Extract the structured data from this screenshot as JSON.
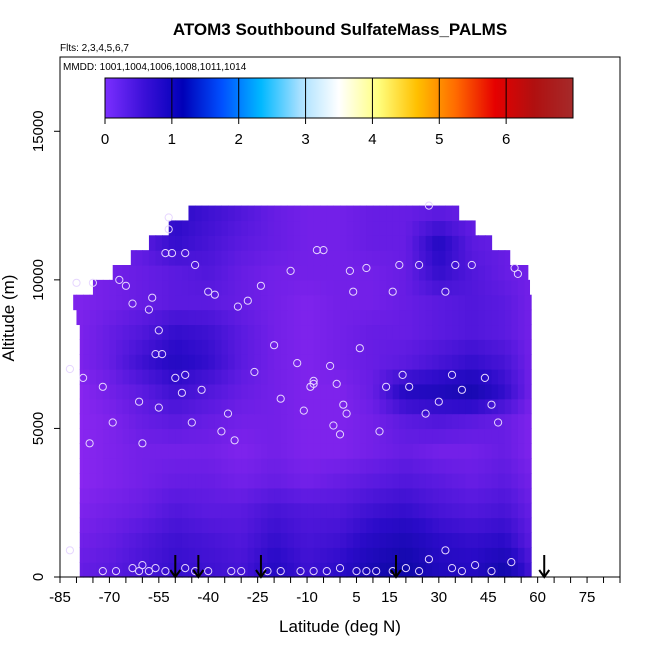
{
  "chart_data": {
    "type": "heatmap",
    "title": "ATOM3 Southbound SulfateMass_PALMS",
    "subtitle_flights": "Flts: 2,3,4,5,6,7",
    "subtitle_dates": "MMDD: 1001,1004,1006,1008,1011,1014",
    "xlabel": "Latitude (deg N)",
    "ylabel": "Altitude (m)",
    "xlim": [
      -85,
      85
    ],
    "ylim": [
      0,
      17500
    ],
    "x_ticks": [
      -85,
      -70,
      -55,
      -40,
      -25,
      -10,
      5,
      15,
      30,
      45,
      60,
      75
    ],
    "y_ticks": [
      0,
      5000,
      10000,
      15000
    ],
    "colorbar": {
      "range": [
        0,
        7
      ],
      "ticks": [
        0,
        1,
        2,
        3,
        4,
        5,
        6
      ],
      "colors": [
        "#7b2fff",
        "#3b10d8",
        "#0000b8",
        "#0050ff",
        "#00b8ff",
        "#a8e0ff",
        "#ffffff",
        "#ffff80",
        "#ffc000",
        "#ff6a00",
        "#e60000",
        "#b01010",
        "#a52a2a"
      ]
    },
    "field_colors": {
      "low": "#8a26f0",
      "mid": "#5b1ae0",
      "high": "#2a0bc8",
      "max": "#0f08a8"
    },
    "field": {
      "lat_grid": [
        -80,
        -70,
        -60,
        -50,
        -40,
        -30,
        -20,
        -10,
        0,
        10,
        20,
        30,
        40,
        50,
        58
      ],
      "alt_grid": [
        0,
        1000,
        2000,
        3000,
        4000,
        5000,
        6000,
        7000,
        8000,
        9000,
        10000,
        11000,
        12000
      ],
      "lat_max_by_alt": [
        58,
        58,
        58,
        58,
        58,
        58,
        58,
        58,
        58,
        58,
        57,
        46,
        36
      ],
      "lat_min_by_alt": [
        -79,
        -79,
        -79,
        -79,
        -79,
        -79,
        -79,
        -79,
        -79,
        -81,
        -69,
        -58,
        -46
      ],
      "values": [
        [
          0.9,
          1.0,
          1.2,
          1.4,
          1.3,
          1.2,
          1.6,
          1.3,
          1.5,
          1.9,
          2.1,
          1.7,
          1.6,
          2.0,
          1.2
        ],
        [
          0.8,
          0.9,
          1.1,
          1.3,
          1.2,
          1.1,
          1.4,
          1.2,
          1.3,
          1.6,
          1.8,
          1.5,
          1.4,
          1.5,
          1.0
        ],
        [
          0.7,
          0.8,
          0.9,
          1.1,
          1.0,
          1.0,
          1.2,
          1.1,
          1.1,
          1.3,
          1.4,
          1.2,
          1.1,
          1.2,
          0.9
        ],
        [
          0.6,
          0.7,
          0.8,
          0.9,
          0.9,
          0.8,
          0.9,
          0.8,
          0.9,
          1.0,
          1.1,
          1.0,
          0.9,
          1.0,
          0.8
        ],
        [
          0.6,
          0.7,
          0.8,
          0.8,
          0.8,
          0.7,
          0.8,
          0.7,
          0.7,
          0.8,
          0.9,
          0.8,
          0.8,
          0.9,
          0.7
        ],
        [
          0.6,
          0.7,
          0.9,
          1.0,
          0.9,
          0.8,
          0.8,
          0.7,
          0.7,
          0.8,
          1.0,
          1.1,
          1.0,
          0.9,
          0.7
        ],
        [
          0.6,
          0.8,
          1.0,
          1.3,
          1.1,
          0.9,
          0.8,
          0.7,
          0.7,
          0.9,
          1.6,
          1.7,
          1.9,
          1.4,
          0.8
        ],
        [
          0.7,
          0.9,
          1.3,
          1.6,
          1.4,
          1.0,
          0.8,
          0.7,
          0.8,
          0.9,
          1.0,
          1.2,
          1.4,
          1.2,
          0.8
        ],
        [
          0.7,
          0.9,
          1.1,
          1.4,
          1.3,
          1.0,
          0.8,
          0.7,
          0.8,
          0.9,
          0.9,
          1.0,
          1.1,
          1.0,
          0.8
        ],
        [
          0.7,
          0.8,
          0.9,
          1.0,
          1.0,
          0.9,
          0.8,
          0.7,
          0.8,
          0.8,
          0.9,
          1.0,
          1.1,
          1.0,
          0.8
        ],
        [
          0.7,
          0.8,
          0.9,
          1.0,
          1.1,
          0.9,
          0.8,
          0.8,
          0.8,
          0.8,
          0.9,
          1.4,
          1.1,
          0.9,
          0.8
        ],
        [
          0.7,
          0.8,
          1.0,
          1.4,
          1.2,
          1.0,
          0.9,
          0.8,
          0.8,
          0.9,
          0.9,
          1.6,
          1.0,
          0.9,
          0.8
        ],
        [
          0.7,
          0.8,
          1.1,
          1.5,
          1.3,
          1.1,
          0.9,
          0.8,
          0.8,
          0.9,
          0.9,
          1.0,
          0.9,
          0.9,
          0.8
        ]
      ]
    },
    "samples": [
      [
        -82,
        7000
      ],
      [
        -80,
        9900
      ],
      [
        -78,
        6700
      ],
      [
        -76,
        4500
      ],
      [
        -75,
        9900
      ],
      [
        -72,
        6400
      ],
      [
        -69,
        5200
      ],
      [
        -67,
        10000
      ],
      [
        -65,
        9800
      ],
      [
        -63,
        9200
      ],
      [
        -61,
        5900
      ],
      [
        -60,
        4500
      ],
      [
        -58,
        9000
      ],
      [
        -57,
        9400
      ],
      [
        -56,
        7500
      ],
      [
        -55,
        5700
      ],
      [
        -55,
        8300
      ],
      [
        -54,
        7500
      ],
      [
        -53,
        10900
      ],
      [
        -52,
        11700
      ],
      [
        -52,
        12100
      ],
      [
        -51,
        10900
      ],
      [
        -50,
        6700
      ],
      [
        -48,
        6200
      ],
      [
        -47,
        6800
      ],
      [
        -47,
        10900
      ],
      [
        -45,
        5200
      ],
      [
        -44,
        10500
      ],
      [
        -42,
        6300
      ],
      [
        -40,
        9600
      ],
      [
        -38,
        9500
      ],
      [
        -36,
        4900
      ],
      [
        -34,
        5500
      ],
      [
        -32,
        4600
      ],
      [
        -31,
        9100
      ],
      [
        -28,
        9300
      ],
      [
        -26,
        6900
      ],
      [
        -24,
        9800
      ],
      [
        -20,
        7800
      ],
      [
        -18,
        6000
      ],
      [
        -15,
        10300
      ],
      [
        -13,
        7200
      ],
      [
        -11,
        5600
      ],
      [
        -9,
        6400
      ],
      [
        -8,
        6500
      ],
      [
        -8,
        6600
      ],
      [
        -7,
        11000
      ],
      [
        -5,
        11000
      ],
      [
        -3,
        7100
      ],
      [
        -2,
        5100
      ],
      [
        -1,
        6500
      ],
      [
        0,
        4800
      ],
      [
        1,
        5800
      ],
      [
        2,
        5500
      ],
      [
        3,
        10300
      ],
      [
        4,
        9600
      ],
      [
        6,
        7700
      ],
      [
        8,
        10400
      ],
      [
        12,
        4900
      ],
      [
        14,
        6400
      ],
      [
        16,
        9600
      ],
      [
        18,
        10500
      ],
      [
        19,
        6800
      ],
      [
        21,
        6400
      ],
      [
        24,
        10500
      ],
      [
        26,
        5500
      ],
      [
        27,
        12500
      ],
      [
        30,
        5900
      ],
      [
        32,
        9600
      ],
      [
        34,
        6800
      ],
      [
        35,
        10500
      ],
      [
        37,
        6300
      ],
      [
        40,
        10500
      ],
      [
        44,
        6700
      ],
      [
        46,
        5800
      ],
      [
        48,
        5200
      ],
      [
        53,
        10400
      ],
      [
        54,
        10200
      ],
      [
        -72,
        200
      ],
      [
        -68,
        200
      ],
      [
        -63,
        300
      ],
      [
        -61,
        200
      ],
      [
        -60,
        400
      ],
      [
        -58,
        200
      ],
      [
        -56,
        300
      ],
      [
        -53,
        200
      ],
      [
        -47,
        300
      ],
      [
        -44,
        200
      ],
      [
        -40,
        200
      ],
      [
        -33,
        200
      ],
      [
        -30,
        200
      ],
      [
        -22,
        200
      ],
      [
        -18,
        200
      ],
      [
        -12,
        200
      ],
      [
        -8,
        200
      ],
      [
        -4,
        200
      ],
      [
        0,
        300
      ],
      [
        5,
        200
      ],
      [
        8,
        200
      ],
      [
        11,
        200
      ],
      [
        16,
        200
      ],
      [
        20,
        300
      ],
      [
        24,
        200
      ],
      [
        27,
        600
      ],
      [
        32,
        900
      ],
      [
        34,
        300
      ],
      [
        37,
        200
      ],
      [
        41,
        400
      ],
      [
        46,
        200
      ],
      [
        52,
        500
      ],
      [
        -82,
        900
      ]
    ],
    "flight_markers_lat": [
      -50,
      -43,
      -24,
      17,
      62
    ]
  }
}
